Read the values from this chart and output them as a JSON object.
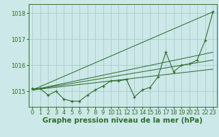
{
  "background_color": "#cce8e8",
  "grid_color": "#aacccc",
  "line_color": "#2d6e2d",
  "xlabel": "Graphe pression niveau de la mer (hPa)",
  "xlabel_fontsize": 7.5,
  "tick_fontsize": 6,
  "xlim": [
    -0.5,
    23.5
  ],
  "ylim": [
    1014.4,
    1018.35
  ],
  "yticks": [
    1015,
    1016,
    1017,
    1018
  ],
  "xticks": [
    0,
    1,
    2,
    3,
    4,
    5,
    6,
    7,
    8,
    9,
    10,
    11,
    12,
    13,
    14,
    15,
    16,
    17,
    18,
    19,
    20,
    21,
    22,
    23
  ],
  "series_main": {
    "x": [
      0,
      1,
      2,
      3,
      4,
      5,
      6,
      7,
      8,
      9,
      10,
      11,
      12,
      13,
      14,
      15,
      16,
      17,
      18,
      19,
      20,
      21,
      22,
      23
    ],
    "y": [
      1015.1,
      1015.1,
      1014.85,
      1015.0,
      1014.7,
      1014.62,
      1014.62,
      1014.85,
      1015.05,
      1015.2,
      1015.4,
      1015.4,
      1015.45,
      1014.78,
      1015.05,
      1015.15,
      1015.55,
      1016.5,
      1015.75,
      1016.0,
      1016.05,
      1016.2,
      1016.95,
      1018.05
    ]
  },
  "trend_lines": [
    {
      "x": [
        0,
        23
      ],
      "y": [
        1015.05,
        1018.05
      ]
    },
    {
      "x": [
        0,
        23
      ],
      "y": [
        1015.05,
        1016.5
      ]
    },
    {
      "x": [
        0,
        23
      ],
      "y": [
        1015.05,
        1016.2
      ]
    },
    {
      "x": [
        0,
        23
      ],
      "y": [
        1015.05,
        1015.85
      ]
    }
  ]
}
